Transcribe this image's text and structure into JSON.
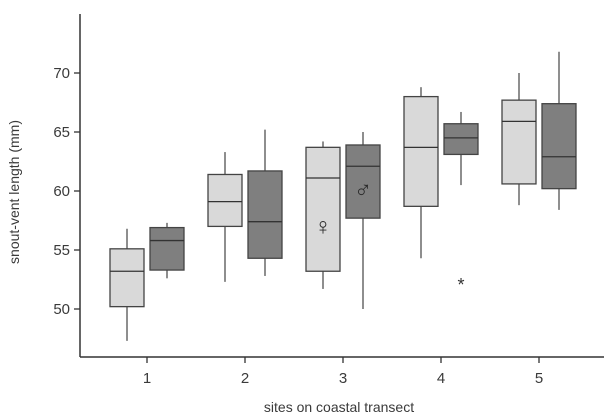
{
  "chart_data": {
    "type": "boxplot",
    "title": "",
    "xlabel": "sites on coastal transect",
    "ylabel": "snout-vent length (mm)",
    "ylim": [
      46,
      73
    ],
    "yticks": [
      50,
      55,
      60,
      65,
      70
    ],
    "categories": [
      "1",
      "2",
      "3",
      "4",
      "5"
    ],
    "grid": false,
    "legend": "none",
    "series": [
      {
        "color": "#d9d9d9",
        "boxes": [
          {
            "min": 47.3,
            "q1": 50.2,
            "median": 53.2,
            "q3": 55.1,
            "max": 56.8
          },
          {
            "min": 52.3,
            "q1": 57.0,
            "median": 59.1,
            "q3": 61.4,
            "max": 63.3
          },
          {
            "min": 51.7,
            "q1": 53.2,
            "median": 61.1,
            "q3": 63.7,
            "max": 64.2
          },
          {
            "min": 54.3,
            "q1": 58.7,
            "median": 63.7,
            "q3": 68.0,
            "max": 68.8
          },
          {
            "min": 58.8,
            "q1": 60.6,
            "median": 65.9,
            "q3": 67.7,
            "max": 70.0
          }
        ]
      },
      {
        "color": "#7f7f7f",
        "boxes": [
          {
            "min": 52.6,
            "q1": 53.3,
            "median": 55.8,
            "q3": 56.9,
            "max": 57.3
          },
          {
            "min": 52.8,
            "q1": 54.3,
            "median": 57.4,
            "q3": 61.7,
            "max": 65.2
          },
          {
            "min": 50.0,
            "q1": 57.7,
            "median": 62.1,
            "q3": 63.9,
            "max": 65.0
          },
          {
            "min": 60.5,
            "q1": 63.1,
            "median": 64.5,
            "q3": 65.7,
            "max": 66.7
          },
          {
            "min": 58.4,
            "q1": 60.2,
            "median": 62.9,
            "q3": 67.4,
            "max": 71.8
          }
        ]
      }
    ],
    "outliers": [
      {
        "category": "4",
        "series": 1,
        "value": 52.2,
        "marker": "*"
      }
    ],
    "annotations": [
      {
        "text": "♀",
        "category": "3",
        "series": 0,
        "value": 57.0
      },
      {
        "text": "♂",
        "category": "3",
        "series": 1,
        "value": 60.1
      }
    ]
  }
}
